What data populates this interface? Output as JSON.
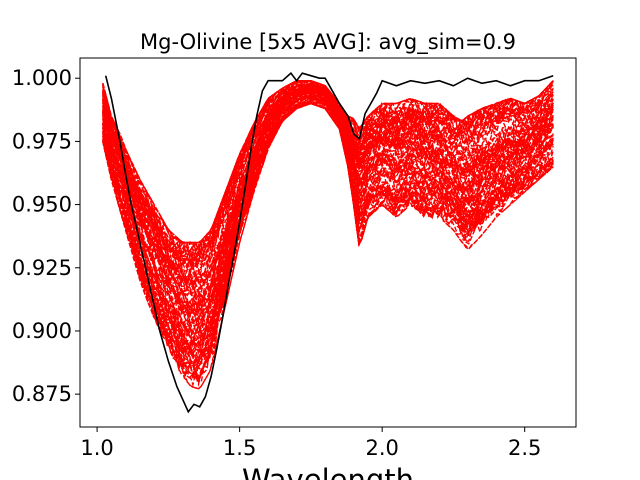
{
  "chart_data": {
    "type": "line",
    "title": "Mg-Olivine [5x5 AVG]: avg_sim=0.9",
    "xlabel": "Wavelength",
    "ylabel": "",
    "xlim": [
      0.94,
      2.68
    ],
    "ylim": [
      0.862,
      1.008
    ],
    "x_ticks": [
      1.0,
      1.5,
      2.0,
      2.5
    ],
    "x_tick_labels": [
      "1.0",
      "1.5",
      "2.0",
      "2.5"
    ],
    "y_ticks": [
      0.875,
      0.9,
      0.925,
      0.95,
      0.975,
      1.0
    ],
    "y_tick_labels": [
      "0.875",
      "0.900",
      "0.925",
      "0.950",
      "0.975",
      "1.000"
    ],
    "grid": false,
    "legend": "none",
    "colors": {
      "reference": "#000000",
      "samples": "#ff0000"
    },
    "reference_series": {
      "style": "solid",
      "x": [
        1.03,
        1.05,
        1.08,
        1.1,
        1.12,
        1.15,
        1.18,
        1.2,
        1.22,
        1.25,
        1.28,
        1.3,
        1.32,
        1.34,
        1.36,
        1.38,
        1.4,
        1.42,
        1.44,
        1.46,
        1.48,
        1.5,
        1.52,
        1.54,
        1.56,
        1.58,
        1.6,
        1.62,
        1.65,
        1.68,
        1.7,
        1.72,
        1.75,
        1.78,
        1.8,
        1.82,
        1.85,
        1.88,
        1.9,
        1.92,
        1.94,
        1.96,
        1.98,
        2.0,
        2.05,
        2.1,
        2.15,
        2.2,
        2.25,
        2.3,
        2.35,
        2.4,
        2.45,
        2.5,
        2.55,
        2.6
      ],
      "y": [
        1.001,
        0.992,
        0.975,
        0.962,
        0.95,
        0.935,
        0.92,
        0.91,
        0.9,
        0.888,
        0.878,
        0.873,
        0.868,
        0.871,
        0.87,
        0.874,
        0.882,
        0.893,
        0.905,
        0.918,
        0.93,
        0.943,
        0.957,
        0.972,
        0.985,
        0.995,
        0.999,
        0.999,
        0.999,
        1.002,
        0.999,
        1.002,
        1.001,
        1.0,
        1.0,
        0.996,
        0.99,
        0.985,
        0.978,
        0.976,
        0.986,
        0.99,
        0.994,
        0.999,
        0.997,
        0.999,
        0.998,
        0.999,
        0.997,
        1.0,
        0.998,
        0.999,
        0.997,
        0.999,
        0.999,
        1.001
      ]
    },
    "sample_band": {
      "style": "dashed",
      "count": 90,
      "x": [
        1.02,
        1.05,
        1.08,
        1.1,
        1.15,
        1.2,
        1.25,
        1.3,
        1.33,
        1.36,
        1.4,
        1.45,
        1.5,
        1.55,
        1.6,
        1.65,
        1.7,
        1.75,
        1.8,
        1.85,
        1.88,
        1.9,
        1.92,
        1.95,
        2.0,
        2.05,
        2.1,
        2.15,
        2.2,
        2.25,
        2.28,
        2.3,
        2.35,
        2.4,
        2.45,
        2.5,
        2.55,
        2.6
      ],
      "upper": [
        0.998,
        0.985,
        0.978,
        0.972,
        0.96,
        0.95,
        0.94,
        0.935,
        0.935,
        0.935,
        0.94,
        0.955,
        0.97,
        0.982,
        0.992,
        0.996,
        0.999,
        0.999,
        0.997,
        0.99,
        0.985,
        0.984,
        0.98,
        0.985,
        0.99,
        0.99,
        0.992,
        0.99,
        0.99,
        0.985,
        0.983,
        0.985,
        0.988,
        0.99,
        0.992,
        0.99,
        0.993,
        0.999
      ],
      "lower": [
        0.975,
        0.96,
        0.948,
        0.94,
        0.92,
        0.905,
        0.893,
        0.882,
        0.878,
        0.877,
        0.885,
        0.91,
        0.935,
        0.955,
        0.972,
        0.983,
        0.988,
        0.99,
        0.988,
        0.98,
        0.965,
        0.95,
        0.933,
        0.945,
        0.95,
        0.945,
        0.95,
        0.945,
        0.945,
        0.94,
        0.935,
        0.932,
        0.938,
        0.945,
        0.95,
        0.955,
        0.96,
        0.965
      ]
    }
  }
}
